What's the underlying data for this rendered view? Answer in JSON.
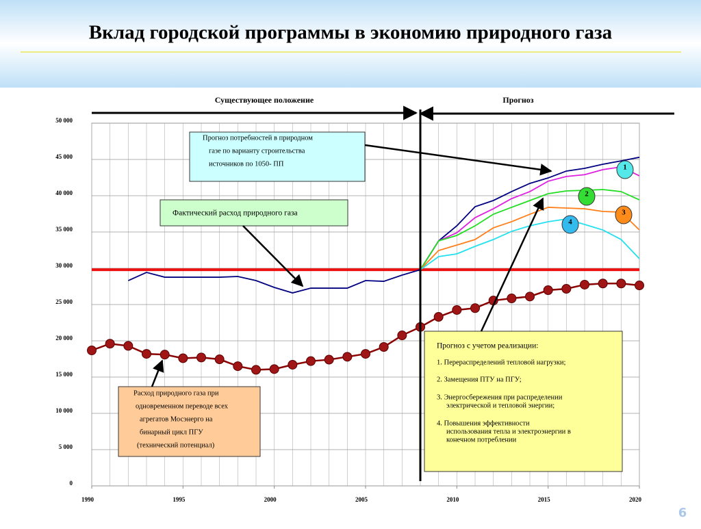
{
  "chart_data": {
    "type": "line",
    "title": "Вклад городской программы в экономию природного газа",
    "period_labels": [
      "Существующее положение",
      "Прогноз"
    ],
    "x": [
      1990,
      1991,
      1992,
      1993,
      1994,
      1995,
      1996,
      1997,
      1998,
      1999,
      2000,
      2001,
      2002,
      2003,
      2004,
      2005,
      2006,
      2007,
      2008,
      2009,
      2010,
      2011,
      2012,
      2013,
      2014,
      2015,
      2016,
      2017,
      2018,
      2019,
      2020
    ],
    "series": [
      {
        "color": "#000080",
        "values": [
          null,
          null,
          28300,
          29430,
          28770,
          28770,
          28770,
          28770,
          28870,
          28300,
          27360,
          26600,
          27260,
          27260,
          27260,
          28300,
          28200,
          29060,
          29800,
          33770,
          35850,
          38490,
          39340,
          40570,
          41700,
          42450,
          43400,
          43770,
          44340,
          44800,
          45300
        ]
      },
      {
        "name": "1",
        "color": "#e020e0",
        "values": [
          null,
          null,
          null,
          null,
          null,
          null,
          null,
          null,
          null,
          null,
          null,
          null,
          null,
          null,
          null,
          null,
          null,
          null,
          29800,
          33770,
          34900,
          36980,
          38200,
          39600,
          40570,
          42000,
          42650,
          42900,
          43600,
          43970,
          42740
        ]
      },
      {
        "name": "2",
        "color": "#22dd22",
        "values": [
          null,
          null,
          null,
          null,
          null,
          null,
          null,
          null,
          null,
          null,
          null,
          null,
          null,
          null,
          null,
          null,
          null,
          null,
          29800,
          33770,
          34530,
          35850,
          37450,
          38400,
          39340,
          40280,
          40660,
          40750,
          40850,
          40570,
          39430
        ]
      },
      {
        "name": "3",
        "color": "#ff7f1a",
        "values": [
          null,
          null,
          null,
          null,
          null,
          null,
          null,
          null,
          null,
          null,
          null,
          null,
          null,
          null,
          null,
          null,
          null,
          null,
          29800,
          32450,
          33200,
          33960,
          35570,
          36420,
          37450,
          38400,
          38300,
          38200,
          37830,
          37740,
          35280
        ]
      },
      {
        "name": "4",
        "color": "#22e0ee",
        "values": [
          null,
          null,
          null,
          null,
          null,
          null,
          null,
          null,
          null,
          null,
          null,
          null,
          null,
          null,
          null,
          null,
          null,
          null,
          29800,
          31600,
          31980,
          33020,
          33960,
          35090,
          35850,
          36420,
          36790,
          36040,
          35280,
          33960,
          31320
        ]
      },
      {
        "color": "#8b0000",
        "marker": "circle",
        "values": [
          18680,
          19600,
          19300,
          18200,
          18100,
          17600,
          17700,
          17450,
          16500,
          16000,
          16100,
          16700,
          17200,
          17400,
          17800,
          18200,
          19150,
          20750,
          21900,
          23300,
          24250,
          24500,
          25550,
          25850,
          26100,
          26980,
          27170,
          27740,
          27900,
          27900,
          27640
        ]
      }
    ],
    "xlim": [
      1990,
      2020
    ],
    "xticks": [
      1990,
      1995,
      2000,
      2005,
      2010,
      2015,
      2020
    ],
    "ylim": [
      0,
      50000
    ],
    "yticks": [
      0,
      {
        "value": 5000,
        "label": "5 000"
      },
      {
        "value": 10000,
        "label": "10 000"
      },
      {
        "value": 15000,
        "label": "15 000"
      },
      {
        "value": 20000,
        "label": "20 000"
      },
      {
        "value": 25000,
        "label": "25 000"
      },
      {
        "value": 30000,
        "label": "30 000"
      },
      {
        "value": 35000,
        "label": "35 000"
      },
      {
        "value": 40000,
        "label": "40 000"
      },
      {
        "value": 45000,
        "label": "45 000"
      },
      {
        "value": 50000,
        "label": "50 000"
      }
    ],
    "grid": true,
    "reference_line": {
      "value": 29800,
      "color": "#ee1111"
    },
    "divider_x": 2008,
    "annotations": {
      "demand_forecast": [
        "Прогноз потребностей в природном",
        "газе по варианту строительства",
        "источников по  1050- ПП"
      ],
      "actual": "Фактический расход природного газа",
      "technical_potential": [
        "Расход природного газа при",
        "одновременном переводе всех",
        "агрегатов Мосэнерго на",
        "бинарный цикл ПГУ",
        "(технический потенциал)"
      ],
      "implementation": {
        "title": "Прогноз с учетом реализации:",
        "items": [
          [
            "1. Перераспределений тепловой нагрузки;"
          ],
          [
            "2. Замещения ПТУ на ПГУ;"
          ],
          [
            "3. Энергосбережения при распределении",
            "электрической и тепловой энергии;"
          ],
          [
            "4. Повышения эффективности",
            "использования тепла и электроэнергии в",
            "конечном потреблении"
          ]
        ]
      }
    },
    "page_number": "6"
  }
}
